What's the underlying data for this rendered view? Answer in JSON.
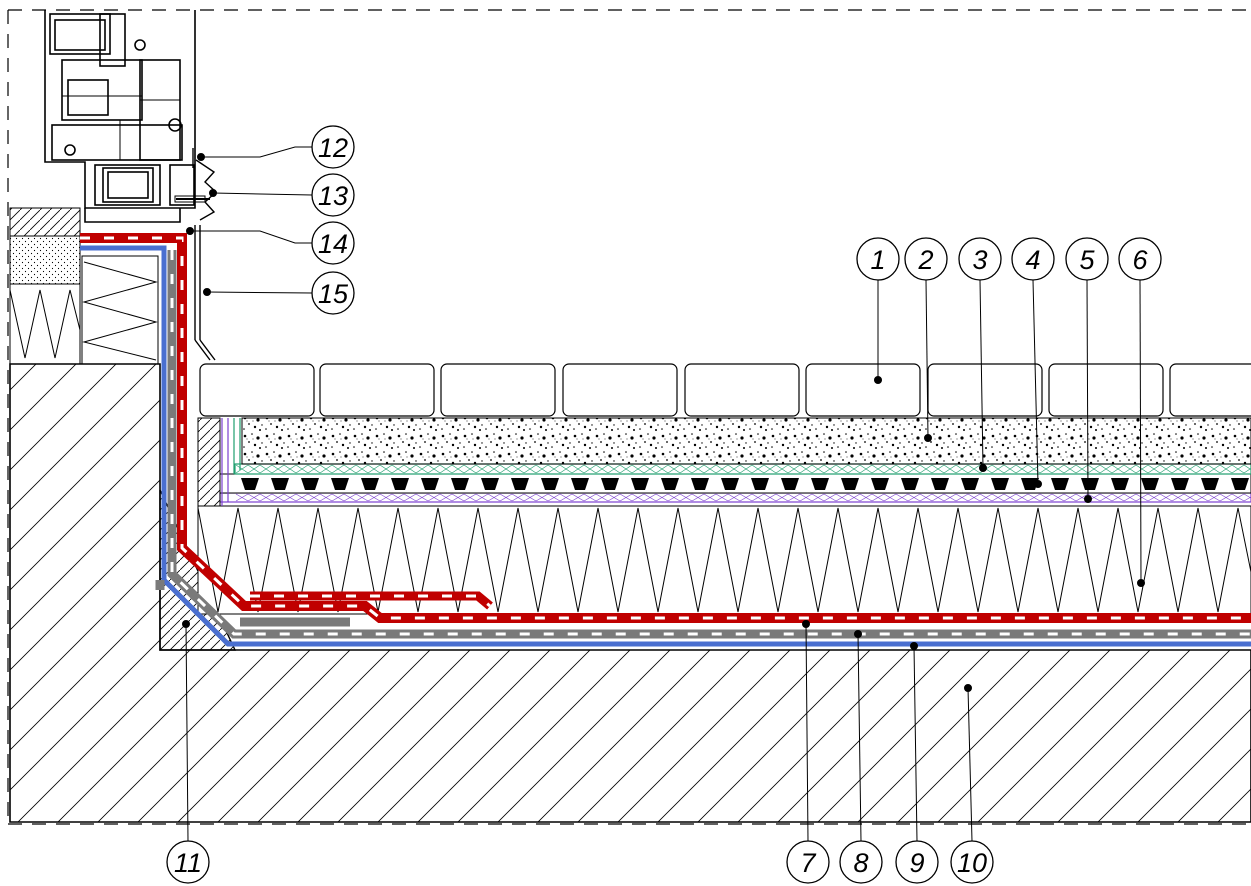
{
  "callouts": [
    {
      "number": "1"
    },
    {
      "number": "2"
    },
    {
      "number": "3"
    },
    {
      "number": "4"
    },
    {
      "number": "5"
    },
    {
      "number": "6"
    },
    {
      "number": "7"
    },
    {
      "number": "8"
    },
    {
      "number": "9"
    },
    {
      "number": "10"
    },
    {
      "number": "11"
    },
    {
      "number": "12"
    },
    {
      "number": "13"
    },
    {
      "number": "14"
    },
    {
      "number": "15"
    }
  ],
  "colors": {
    "outer_membrane": "#c00000",
    "middle_membrane": "#7a7a7a",
    "inner_membrane": "#4a6fd0",
    "filter_fleece": "#1e9e6e",
    "protection_fleece": "#7b3fd0",
    "hatch": "#000000",
    "line": "#000000"
  }
}
